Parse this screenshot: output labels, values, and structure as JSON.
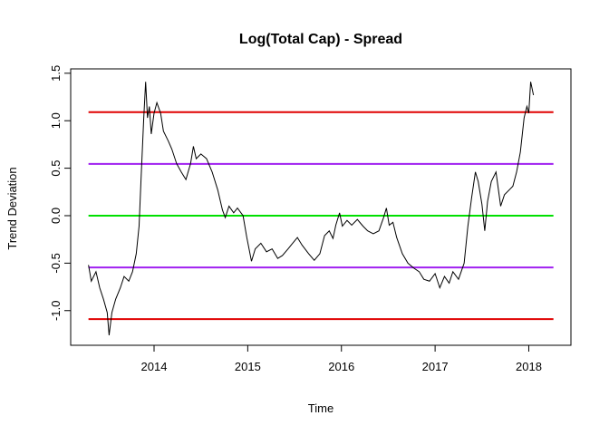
{
  "chart_data": {
    "type": "line",
    "title": "Log(Total Cap) - Spread",
    "x_label": "Time",
    "y_label": "Trend Deviation",
    "x": [
      2013.3,
      2013.33,
      2013.38,
      2013.42,
      2013.46,
      2013.5,
      2013.52,
      2013.55,
      2013.59,
      2013.64,
      2013.68,
      2013.73,
      2013.77,
      2013.81,
      2013.84,
      2013.86,
      2013.89,
      2013.91,
      2013.93,
      2013.95,
      2013.97,
      2014.0,
      2014.03,
      2014.07,
      2014.1,
      2014.15,
      2014.19,
      2014.24,
      2014.29,
      2014.34,
      2014.39,
      2014.42,
      2014.45,
      2014.5,
      2014.56,
      2014.62,
      2014.68,
      2014.73,
      2014.76,
      2014.8,
      2014.85,
      2014.89,
      2014.95,
      2014.99,
      2015.04,
      2015.08,
      2015.14,
      2015.2,
      2015.26,
      2015.32,
      2015.37,
      2015.43,
      2015.48,
      2015.53,
      2015.58,
      2015.65,
      2015.71,
      2015.77,
      2015.82,
      2015.87,
      2015.91,
      2015.94,
      2015.98,
      2016.01,
      2016.06,
      2016.11,
      2016.17,
      2016.23,
      2016.28,
      2016.34,
      2016.4,
      2016.45,
      2016.48,
      2016.51,
      2016.55,
      2016.59,
      2016.65,
      2016.71,
      2016.77,
      2016.83,
      2016.88,
      2016.94,
      2017.0,
      2017.05,
      2017.1,
      2017.15,
      2017.19,
      2017.25,
      2017.31,
      2017.35,
      2017.39,
      2017.43,
      2017.46,
      2017.5,
      2017.53,
      2017.56,
      2017.6,
      2017.65,
      2017.7,
      2017.74,
      2017.79,
      2017.83,
      2017.87,
      2017.91,
      2017.95,
      2017.98,
      2018.0,
      2018.02,
      2018.05
    ],
    "series": [
      {
        "name": "Spread",
        "color": "#000000",
        "values": [
          -0.52,
          -0.69,
          -0.59,
          -0.76,
          -0.88,
          -1.02,
          -1.26,
          -1.02,
          -0.88,
          -0.76,
          -0.64,
          -0.69,
          -0.59,
          -0.4,
          -0.11,
          0.36,
          1.03,
          1.41,
          1.03,
          1.15,
          0.86,
          1.08,
          1.19,
          1.08,
          0.89,
          0.79,
          0.7,
          0.55,
          0.46,
          0.38,
          0.55,
          0.73,
          0.6,
          0.65,
          0.6,
          0.46,
          0.27,
          0.06,
          -0.02,
          0.1,
          0.03,
          0.08,
          0.0,
          -0.23,
          -0.48,
          -0.35,
          -0.29,
          -0.38,
          -0.35,
          -0.45,
          -0.42,
          -0.35,
          -0.29,
          -0.23,
          -0.31,
          -0.4,
          -0.47,
          -0.4,
          -0.21,
          -0.16,
          -0.24,
          -0.1,
          0.03,
          -0.11,
          -0.05,
          -0.1,
          -0.04,
          -0.11,
          -0.16,
          -0.19,
          -0.16,
          -0.02,
          0.08,
          -0.1,
          -0.07,
          -0.23,
          -0.4,
          -0.5,
          -0.55,
          -0.59,
          -0.67,
          -0.69,
          -0.61,
          -0.76,
          -0.64,
          -0.71,
          -0.59,
          -0.67,
          -0.5,
          -0.11,
          0.19,
          0.46,
          0.36,
          0.12,
          -0.16,
          0.15,
          0.36,
          0.46,
          0.1,
          0.22,
          0.27,
          0.31,
          0.46,
          0.67,
          1.03,
          1.15,
          1.08,
          1.41,
          1.27
        ]
      }
    ],
    "reference_lines": [
      {
        "value": 1.09,
        "color": "#e00000"
      },
      {
        "value": 0.545,
        "color": "#a020f0"
      },
      {
        "value": 0,
        "color": "#00e000"
      },
      {
        "value": -0.545,
        "color": "#a020f0"
      },
      {
        "value": -1.09,
        "color": "#e00000"
      }
    ],
    "xlim": [
      2013.11,
      2018.45
    ],
    "ylim": [
      -1.365,
      1.546
    ],
    "xticks": [
      2014,
      2015,
      2016,
      2017,
      2018
    ],
    "yticks": [
      {
        "value": -1,
        "label": "-1.0"
      },
      -0.5,
      {
        "value": 0,
        "label": "0.0"
      },
      0.5,
      {
        "value": 1,
        "label": "1.0"
      },
      1.5
    ]
  }
}
